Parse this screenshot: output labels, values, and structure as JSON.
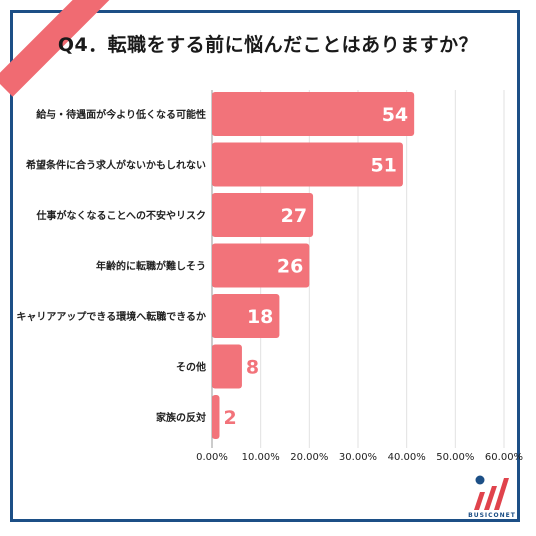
{
  "title": "Q4．転職をする前に悩んだことはありますか？",
  "logo_text": "BUSICONET",
  "colors": {
    "bar": "#f2737a",
    "frame": "#1c4f86",
    "ribbon": "#f06b72",
    "grid": "#e2e2e2"
  },
  "chart_data": {
    "type": "bar",
    "orientation": "horizontal",
    "categories": [
      "給与・待遇面が今より低くなる可能性",
      "希望条件に合う求人がないかもしれない",
      "仕事がなくなることへの不安やリスク",
      "年齢的に転職が難しそう",
      "キャリアアップできる環境へ転職できるか",
      "その他",
      "家族の反対"
    ],
    "values": [
      54,
      51,
      27,
      26,
      18,
      8,
      2
    ],
    "shares": [
      0.4154,
      0.3923,
      0.2077,
      0.2,
      0.1385,
      0.0615,
      0.0154
    ],
    "xlim": [
      0,
      0.6
    ],
    "xticks": [
      "0.00%",
      "10.00%",
      "20.00%",
      "30.00%",
      "40.00%",
      "50.00%",
      "60.00%"
    ],
    "grid": true,
    "legend": "none"
  }
}
